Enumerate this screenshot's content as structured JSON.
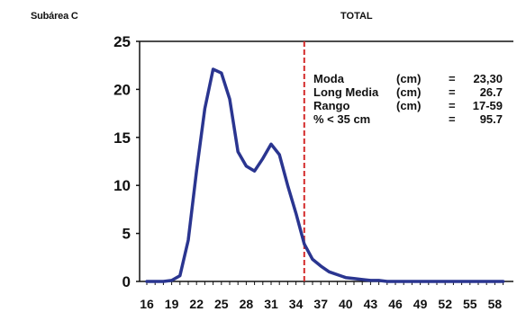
{
  "header": {
    "corner_label": "Subárea C",
    "title": "TOTAL"
  },
  "stats": [
    {
      "label": "Moda",
      "unit": "(cm)",
      "eq": "=",
      "value": "23,30"
    },
    {
      "label": "Long Media",
      "unit": "(cm)",
      "eq": "=",
      "value": "26.7"
    },
    {
      "label": "Rango",
      "unit": "(cm)",
      "eq": "=",
      "value": "17-59"
    },
    {
      "label": "% < 35 cm",
      "unit": "",
      "eq": "=",
      "value": "95.7"
    }
  ],
  "chart_data": {
    "type": "line",
    "title": "TOTAL",
    "xlabel": "",
    "ylabel": "",
    "x_tick_labels": [
      "16",
      "19",
      "22",
      "25",
      "28",
      "31",
      "34",
      "37",
      "40",
      "43",
      "46",
      "49",
      "52",
      "55",
      "58"
    ],
    "y_tick_labels": [
      "0",
      "5",
      "10",
      "15",
      "20",
      "25"
    ],
    "xlim": [
      16,
      59
    ],
    "ylim": [
      0,
      25
    ],
    "grid": false,
    "series": [
      {
        "color": "#2a3590",
        "x": [
          16,
          17,
          18,
          19,
          20,
          21,
          22,
          23,
          24,
          25,
          26,
          27,
          28,
          29,
          30,
          31,
          32,
          33,
          34,
          35,
          36,
          37,
          38,
          39,
          40,
          41,
          42,
          43,
          44,
          45,
          46,
          47,
          48,
          49,
          50,
          51,
          52,
          53,
          54,
          55,
          56,
          57,
          58,
          59
        ],
        "values": [
          0,
          0,
          0,
          0.1,
          0.6,
          4.3,
          11.5,
          18.0,
          22.1,
          21.7,
          19.0,
          13.5,
          12.0,
          11.5,
          12.8,
          14.3,
          13.2,
          10.0,
          7.1,
          3.9,
          2.3,
          1.6,
          1.0,
          0.7,
          0.4,
          0.3,
          0.2,
          0.1,
          0.1,
          0,
          0,
          0,
          0,
          0,
          0,
          0,
          0,
          0,
          0,
          0,
          0,
          0,
          0,
          0
        ]
      }
    ],
    "reference_line": {
      "x": 35,
      "color": "#d42b2b",
      "style": "dashed"
    }
  }
}
